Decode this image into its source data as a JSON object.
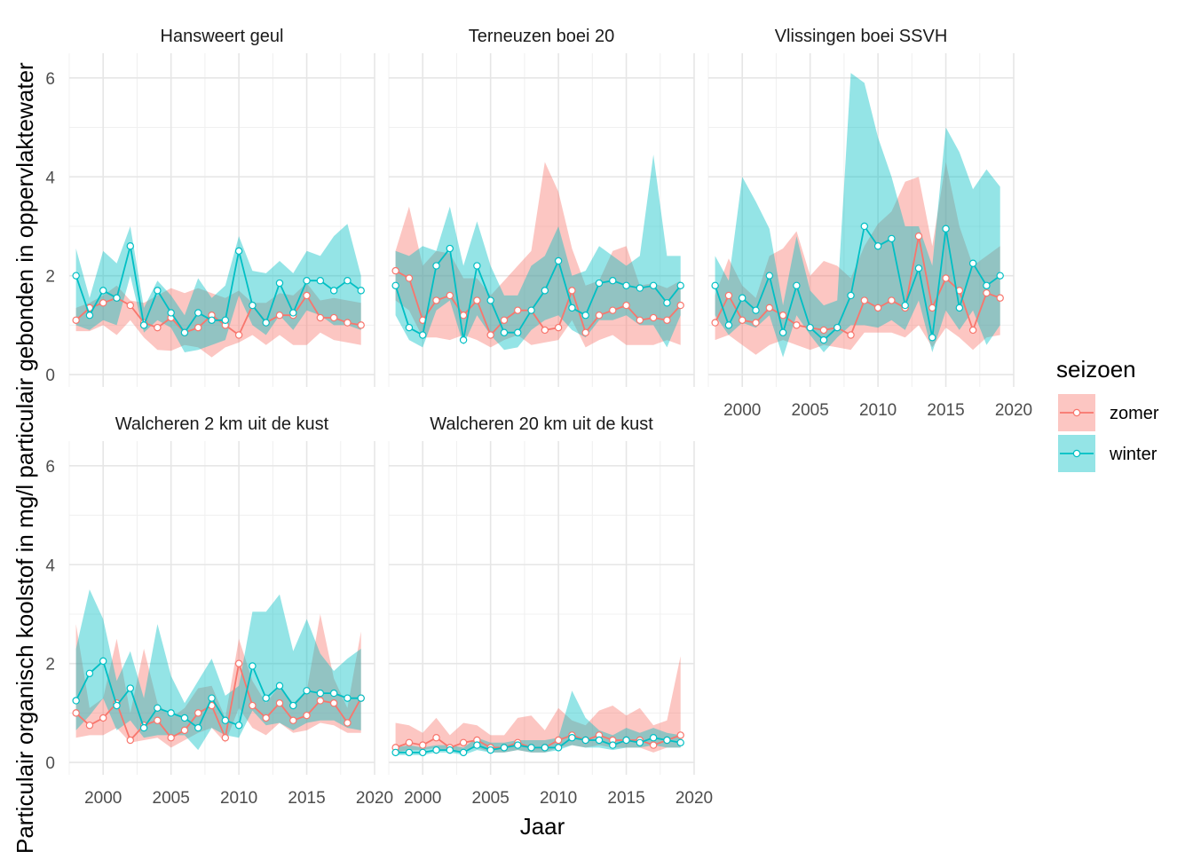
{
  "chart_data": {
    "type": "line",
    "xlabel": "Jaar",
    "ylabel": "Particulair organisch koolstof in mg/l particulair gebonden in oppervlaktewater",
    "xlim": [
      1997.5,
      2020
    ],
    "ylim": [
      -0.25,
      6.5
    ],
    "x_ticks": [
      2000,
      2005,
      2010,
      2015,
      2020
    ],
    "y_ticks": [
      0,
      2,
      4,
      6
    ],
    "legend": {
      "title": "seizoen",
      "position": "right",
      "entries": [
        {
          "name": "zomer",
          "color": "#F8766D"
        },
        {
          "name": "winter",
          "color": "#00BFC4"
        }
      ]
    },
    "years": [
      1998,
      1999,
      2000,
      2001,
      2002,
      2003,
      2004,
      2005,
      2006,
      2007,
      2008,
      2009,
      2010,
      2011,
      2012,
      2013,
      2014,
      2015,
      2016,
      2017,
      2018,
      2019
    ],
    "panels": [
      {
        "name": "Hansweert geul",
        "series": [
          {
            "name": "zomer",
            "values": [
              1.1,
              1.35,
              1.45,
              1.55,
              1.4,
              1.05,
              0.95,
              1.15,
              0.85,
              0.95,
              1.2,
              1.0,
              0.8,
              1.4,
              1.05,
              1.2,
              1.2,
              1.6,
              1.15,
              1.15,
              1.05,
              1.0
            ],
            "lower": [
              0.88,
              0.88,
              1.0,
              0.8,
              1.1,
              0.75,
              0.5,
              0.48,
              0.6,
              0.55,
              0.35,
              0.55,
              0.65,
              0.8,
              0.6,
              0.8,
              0.6,
              0.6,
              0.85,
              0.7,
              0.65,
              0.6
            ],
            "upper": [
              1.35,
              1.45,
              1.6,
              1.8,
              1.5,
              1.45,
              1.6,
              1.75,
              1.65,
              1.75,
              1.65,
              1.55,
              1.7,
              1.45,
              1.45,
              1.65,
              1.6,
              1.85,
              1.5,
              1.55,
              1.5,
              1.45
            ]
          },
          {
            "name": "winter",
            "values": [
              2.0,
              1.2,
              1.7,
              1.55,
              2.6,
              1.0,
              1.7,
              1.25,
              0.85,
              1.25,
              1.1,
              1.1,
              2.5,
              1.4,
              1.05,
              1.85,
              1.25,
              1.9,
              1.9,
              1.7,
              1.9,
              1.7
            ],
            "lower": [
              1.0,
              0.9,
              1.1,
              1.0,
              2.0,
              0.85,
              1.1,
              0.95,
              0.45,
              0.5,
              0.6,
              0.7,
              1.6,
              1.0,
              0.8,
              1.2,
              0.9,
              1.3,
              1.2,
              1.0,
              1.0,
              0.9
            ],
            "upper": [
              2.55,
              1.55,
              2.5,
              2.25,
              3.0,
              1.35,
              1.9,
              1.6,
              1.2,
              1.95,
              1.55,
              1.8,
              2.8,
              2.1,
              2.05,
              2.3,
              2.05,
              2.5,
              2.4,
              2.8,
              3.05,
              2.0
            ]
          }
        ]
      },
      {
        "name": "Terneuzen boei 20",
        "series": [
          {
            "name": "zomer",
            "values": [
              2.1,
              1.95,
              1.1,
              1.5,
              1.6,
              1.2,
              1.5,
              0.8,
              1.1,
              1.3,
              1.3,
              0.9,
              0.95,
              1.7,
              0.85,
              1.2,
              1.3,
              1.4,
              1.1,
              1.15,
              1.1,
              1.4
            ],
            "lower": [
              1.5,
              1.3,
              0.75,
              0.75,
              0.7,
              0.8,
              0.7,
              0.55,
              0.7,
              0.8,
              0.6,
              0.65,
              0.7,
              1.1,
              0.55,
              0.7,
              0.8,
              0.6,
              0.6,
              0.6,
              0.7,
              0.6
            ],
            "upper": [
              2.5,
              3.4,
              2.2,
              2.5,
              2.45,
              1.95,
              1.95,
              1.6,
              1.9,
              2.2,
              2.5,
              4.3,
              3.7,
              2.55,
              1.8,
              1.9,
              2.5,
              2.6,
              1.8,
              1.85,
              1.75,
              1.9
            ]
          },
          {
            "name": "winter",
            "values": [
              1.8,
              0.95,
              0.8,
              2.2,
              2.55,
              0.7,
              2.2,
              1.5,
              0.85,
              0.85,
              1.3,
              1.7,
              2.3,
              1.35,
              1.2,
              1.85,
              1.9,
              1.8,
              1.75,
              1.8,
              1.45,
              1.8
            ],
            "lower": [
              1.2,
              0.7,
              0.55,
              1.3,
              1.5,
              0.6,
              1.2,
              0.8,
              0.5,
              0.55,
              0.9,
              1.1,
              1.2,
              0.9,
              0.75,
              1.1,
              1.1,
              1.2,
              1.0,
              1.0,
              0.55,
              1.2
            ],
            "upper": [
              2.5,
              2.4,
              2.6,
              2.5,
              3.4,
              2.2,
              3.1,
              2.2,
              1.6,
              1.6,
              2.2,
              2.4,
              3.0,
              2.0,
              2.1,
              2.6,
              2.4,
              2.2,
              2.4,
              4.45,
              2.4,
              2.4
            ]
          }
        ]
      },
      {
        "name": "Vlissingen boei SSVH",
        "series": [
          {
            "name": "zomer",
            "values": [
              1.05,
              1.6,
              1.1,
              1.05,
              1.35,
              1.2,
              1.0,
              0.95,
              0.9,
              0.95,
              0.8,
              1.5,
              1.35,
              1.5,
              1.35,
              2.8,
              1.35,
              1.95,
              1.7,
              0.9,
              1.65,
              1.55
            ],
            "lower": [
              0.7,
              0.8,
              0.6,
              0.4,
              0.6,
              0.7,
              0.6,
              0.5,
              0.6,
              0.55,
              0.5,
              0.85,
              0.85,
              0.85,
              0.75,
              1.0,
              0.55,
              0.95,
              0.75,
              0.5,
              0.75,
              0.8
            ],
            "upper": [
              1.6,
              2.35,
              1.8,
              1.55,
              2.4,
              2.55,
              2.9,
              2.0,
              2.3,
              2.2,
              1.95,
              2.6,
              3.05,
              3.3,
              3.9,
              4.0,
              2.6,
              4.3,
              3.0,
              2.2,
              2.4,
              2.6
            ]
          },
          {
            "name": "winter",
            "values": [
              1.8,
              1.0,
              1.55,
              1.3,
              2.0,
              0.85,
              1.8,
              0.95,
              0.7,
              0.95,
              1.6,
              3.0,
              2.6,
              2.75,
              1.4,
              2.15,
              0.75,
              2.95,
              1.35,
              2.25,
              1.8,
              2.0
            ],
            "lower": [
              1.2,
              0.8,
              1.05,
              0.95,
              1.2,
              0.35,
              1.2,
              0.8,
              0.45,
              0.75,
              1.0,
              1.0,
              0.95,
              1.1,
              0.9,
              1.5,
              0.45,
              1.3,
              0.9,
              1.3,
              0.6,
              1.0
            ],
            "upper": [
              2.4,
              1.9,
              4.0,
              3.5,
              2.95,
              1.4,
              2.8,
              1.7,
              1.4,
              1.5,
              6.1,
              5.9,
              4.8,
              4.0,
              3.0,
              3.0,
              2.2,
              5.0,
              4.5,
              3.75,
              4.15,
              3.8
            ]
          }
        ]
      },
      {
        "name": "Walcheren 2 km uit de kust",
        "series": [
          {
            "name": "zomer",
            "values": [
              1.0,
              0.75,
              0.9,
              1.2,
              0.45,
              0.75,
              0.85,
              0.5,
              0.65,
              1.0,
              1.15,
              0.5,
              2.0,
              1.15,
              0.9,
              1.2,
              0.85,
              0.95,
              1.25,
              1.2,
              0.8,
              1.3
            ],
            "lower": [
              0.5,
              0.55,
              0.55,
              0.7,
              0.4,
              0.45,
              0.5,
              0.3,
              0.45,
              0.6,
              0.7,
              0.4,
              1.1,
              0.7,
              0.55,
              0.8,
              0.6,
              0.65,
              0.8,
              0.75,
              0.6,
              0.6
            ],
            "upper": [
              2.8,
              1.1,
              1.3,
              2.5,
              1.0,
              2.3,
              1.2,
              0.9,
              1.1,
              1.5,
              1.55,
              0.9,
              2.5,
              1.65,
              1.2,
              1.55,
              1.2,
              1.45,
              3.0,
              1.7,
              1.1,
              2.65
            ]
          },
          {
            "name": "winter",
            "values": [
              1.25,
              1.8,
              2.05,
              1.15,
              1.5,
              0.7,
              1.1,
              1.0,
              0.9,
              0.7,
              1.3,
              0.85,
              0.75,
              1.95,
              1.3,
              1.55,
              1.15,
              1.45,
              1.4,
              1.4,
              1.3,
              1.3
            ],
            "lower": [
              0.65,
              0.95,
              1.3,
              0.65,
              0.85,
              0.5,
              0.55,
              0.55,
              0.55,
              0.25,
              0.7,
              0.55,
              0.5,
              1.05,
              0.75,
              0.8,
              0.65,
              0.8,
              0.85,
              0.85,
              0.7,
              0.65
            ],
            "upper": [
              2.3,
              3.5,
              2.9,
              1.65,
              2.25,
              1.3,
              2.8,
              1.75,
              1.2,
              1.65,
              2.1,
              1.35,
              1.55,
              3.05,
              3.05,
              3.4,
              2.25,
              2.9,
              2.2,
              1.85,
              2.1,
              2.3
            ]
          }
        ]
      },
      {
        "name": "Walcheren 20 km uit de kust",
        "series": [
          {
            "name": "zomer",
            "values": [
              0.3,
              0.4,
              0.35,
              0.5,
              0.3,
              0.4,
              0.45,
              0.3,
              0.3,
              0.4,
              0.3,
              0.3,
              0.45,
              0.55,
              0.45,
              0.55,
              0.45,
              0.45,
              0.45,
              0.35,
              0.45,
              0.55
            ],
            "lower": [
              0.2,
              0.25,
              0.25,
              0.3,
              0.2,
              0.25,
              0.3,
              0.2,
              0.2,
              0.25,
              0.2,
              0.2,
              0.3,
              0.35,
              0.3,
              0.35,
              0.3,
              0.3,
              0.3,
              0.2,
              0.3,
              0.3
            ],
            "upper": [
              0.8,
              0.75,
              0.6,
              0.9,
              0.55,
              0.8,
              0.75,
              0.55,
              0.55,
              0.9,
              0.95,
              0.65,
              1.1,
              0.85,
              0.75,
              1.05,
              1.15,
              0.95,
              1.1,
              0.75,
              0.85,
              2.15
            ]
          },
          {
            "name": "winter",
            "values": [
              0.2,
              0.2,
              0.2,
              0.25,
              0.25,
              0.2,
              0.35,
              0.25,
              0.3,
              0.35,
              0.3,
              0.3,
              0.3,
              0.5,
              0.45,
              0.45,
              0.35,
              0.45,
              0.4,
              0.5,
              0.45,
              0.4
            ],
            "lower": [
              0.15,
              0.15,
              0.15,
              0.2,
              0.2,
              0.15,
              0.25,
              0.2,
              0.2,
              0.25,
              0.2,
              0.2,
              0.25,
              0.35,
              0.3,
              0.3,
              0.25,
              0.3,
              0.3,
              0.35,
              0.3,
              0.3
            ],
            "upper": [
              0.3,
              0.35,
              0.3,
              0.35,
              0.35,
              0.3,
              0.5,
              0.4,
              0.4,
              0.45,
              0.45,
              0.45,
              0.5,
              1.45,
              0.9,
              0.65,
              0.55,
              0.7,
              0.6,
              0.7,
              0.6,
              0.55
            ]
          }
        ]
      }
    ]
  }
}
